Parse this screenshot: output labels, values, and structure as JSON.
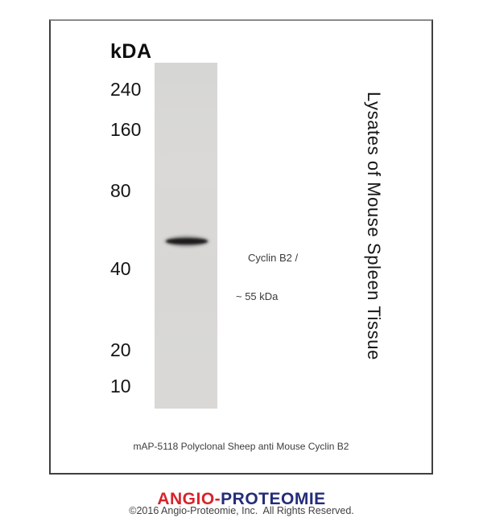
{
  "blot": {
    "unit_label": "kDA",
    "markers": [
      {
        "label": "240"
      },
      {
        "label": "160"
      },
      {
        "label": "80"
      },
      {
        "label": "40"
      },
      {
        "label": "20"
      },
      {
        "label": "10"
      }
    ],
    "band": {
      "label_line1": "Cyclin B2 /",
      "label_line2": "~ 55 kDa",
      "approx_kda": "55"
    },
    "sample_label": "Lysates of Mouse Spleen Tissue",
    "caption": "mAP-5118 Polyclonal Sheep anti Mouse Cyclin B2"
  },
  "footer": {
    "brand_first": "ANGIO-",
    "brand_second": "PROTEOMIE",
    "brand_first_color": "#d9222a",
    "brand_second_color": "#252c78",
    "copyright": "©2016 Angio-Proteomie, Inc.  All Rights Reserved."
  }
}
